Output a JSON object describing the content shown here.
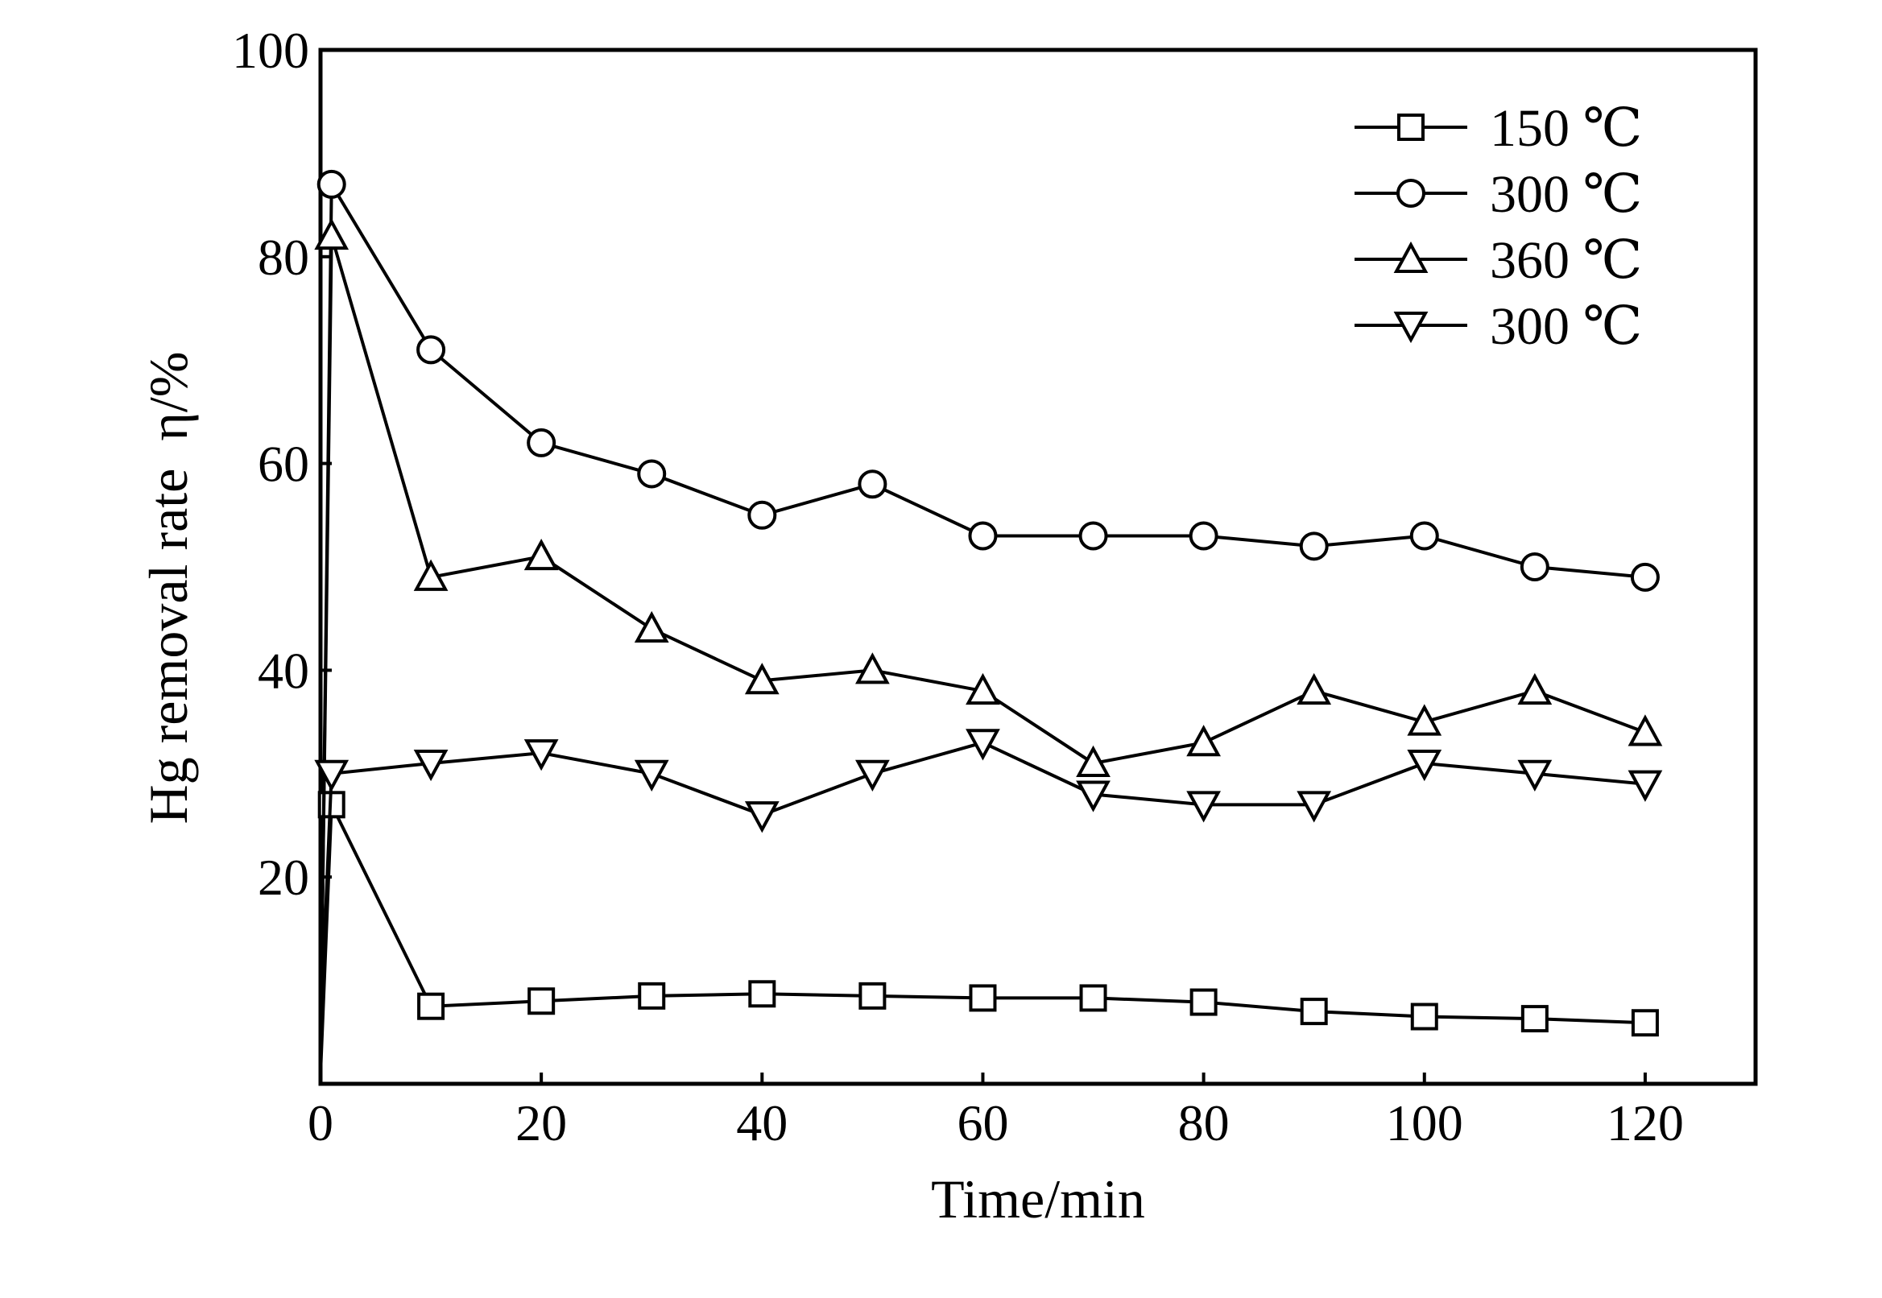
{
  "chart_data": {
    "type": "line",
    "title": "",
    "xlabel": "Time/min",
    "ylabel": "Hg removal rate  η/%",
    "xlim": [
      0,
      130
    ],
    "ylim": [
      0,
      100
    ],
    "xticks": [
      0,
      20,
      40,
      60,
      80,
      100,
      120
    ],
    "yticks": [
      20,
      40,
      60,
      80,
      100
    ],
    "grid": false,
    "legend": "top-right",
    "colors": {
      "line": "#000000",
      "marker_fill": "#ffffff"
    },
    "series": [
      {
        "name": "150 ℃",
        "marker": "square",
        "x": [
          0,
          1,
          10,
          20,
          30,
          40,
          50,
          60,
          70,
          80,
          90,
          100,
          110,
          120
        ],
        "y": [
          1,
          27,
          7.5,
          8,
          8.5,
          8.7,
          8.5,
          8.3,
          8.3,
          7.9,
          7,
          6.5,
          6.3,
          5.9
        ]
      },
      {
        "name": "300 ℃",
        "marker": "circle",
        "x": [
          0,
          1,
          10,
          20,
          30,
          40,
          50,
          60,
          70,
          80,
          90,
          100,
          110,
          120
        ],
        "y": [
          2,
          87,
          71,
          62,
          59,
          55,
          58,
          53,
          53,
          53,
          52,
          53,
          50,
          49
        ]
      },
      {
        "name": "360 ℃",
        "marker": "triangle-up",
        "x": [
          0,
          1,
          10,
          20,
          30,
          40,
          50,
          60,
          70,
          80,
          90,
          100,
          110,
          120
        ],
        "y": [
          3,
          82,
          49,
          51,
          44,
          39,
          40,
          38,
          31,
          33,
          38,
          35,
          38,
          34
        ]
      },
      {
        "name": "300 ℃",
        "marker": "triangle-down",
        "x": [
          0,
          1,
          10,
          20,
          30,
          40,
          50,
          60,
          70,
          80,
          90,
          100,
          110,
          120
        ],
        "y": [
          5,
          30,
          31,
          32,
          30,
          26,
          30,
          33,
          28,
          27,
          27,
          31,
          30,
          29
        ]
      }
    ]
  }
}
